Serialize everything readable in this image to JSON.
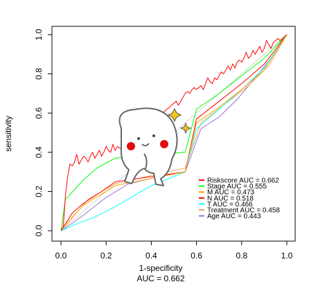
{
  "chart_data": {
    "type": "line",
    "xlabel": "1-specificity",
    "ylabel": "sensitivity",
    "footer": "AUC = 0.662",
    "xlim": [
      0,
      1
    ],
    "ylim": [
      0,
      1
    ],
    "x_ticks": [
      {
        "value": 0.0,
        "label": "0.0"
      },
      {
        "value": 0.2,
        "label": "0.2"
      },
      {
        "value": 0.4,
        "label": "0.4"
      },
      {
        "value": 0.6,
        "label": "0.6"
      },
      {
        "value": 0.8,
        "label": "0.8"
      },
      {
        "value": 1.0,
        "label": "1.0"
      }
    ],
    "y_ticks": [
      {
        "value": 0.0,
        "label": "0.0"
      },
      {
        "value": 0.2,
        "label": "0.2"
      },
      {
        "value": 0.4,
        "label": "0.4"
      },
      {
        "value": 0.6,
        "label": "0.6"
      },
      {
        "value": 0.8,
        "label": "0.8"
      },
      {
        "value": 1.0,
        "label": "1.0"
      }
    ],
    "diagonal_color": "#d3d3d3",
    "legend_position": "bottom-right",
    "series": [
      {
        "name": "Riskscore AUC =  0.662",
        "color": "#ff0000",
        "x": [
          0.0,
          0.01,
          0.02,
          0.03,
          0.04,
          0.05,
          0.06,
          0.07,
          0.08,
          0.09,
          0.1,
          0.11,
          0.12,
          0.13,
          0.14,
          0.15,
          0.16,
          0.17,
          0.18,
          0.19,
          0.2,
          0.21,
          0.22,
          0.23,
          0.24,
          0.25,
          0.26,
          0.27,
          0.28,
          0.29,
          0.3,
          0.31,
          0.32,
          0.33,
          0.34,
          0.35,
          0.36,
          0.37,
          0.38,
          0.39,
          0.4,
          0.41,
          0.42,
          0.43,
          0.44,
          0.45,
          0.46,
          0.47,
          0.48,
          0.49,
          0.5,
          0.51,
          0.52,
          0.53,
          0.54,
          0.55,
          0.56,
          0.57,
          0.58,
          0.59,
          0.6,
          0.61,
          0.62,
          0.63,
          0.64,
          0.65,
          0.66,
          0.67,
          0.68,
          0.69,
          0.7,
          0.71,
          0.72,
          0.73,
          0.74,
          0.75,
          0.76,
          0.77,
          0.78,
          0.79,
          0.8,
          0.81,
          0.82,
          0.83,
          0.84,
          0.85,
          0.86,
          0.87,
          0.88,
          0.89,
          0.9,
          0.91,
          0.92,
          0.93,
          0.94,
          0.95,
          0.96,
          0.97,
          0.98,
          0.99,
          1.0
        ],
        "y": [
          0.0,
          0.02,
          0.18,
          0.28,
          0.34,
          0.33,
          0.35,
          0.39,
          0.34,
          0.36,
          0.38,
          0.37,
          0.35,
          0.38,
          0.4,
          0.37,
          0.39,
          0.41,
          0.38,
          0.4,
          0.43,
          0.41,
          0.4,
          0.44,
          0.41,
          0.43,
          0.42,
          0.42,
          0.42,
          0.42,
          0.42,
          0.42,
          0.42,
          0.43,
          0.45,
          0.47,
          0.49,
          0.5,
          0.52,
          0.53,
          0.55,
          0.56,
          0.57,
          0.58,
          0.59,
          0.6,
          0.61,
          0.62,
          0.63,
          0.64,
          0.65,
          0.66,
          0.64,
          0.66,
          0.68,
          0.7,
          0.71,
          0.7,
          0.72,
          0.73,
          0.72,
          0.73,
          0.74,
          0.72,
          0.75,
          0.78,
          0.76,
          0.75,
          0.78,
          0.77,
          0.79,
          0.81,
          0.8,
          0.82,
          0.84,
          0.82,
          0.85,
          0.83,
          0.86,
          0.87,
          0.86,
          0.88,
          0.91,
          0.88,
          0.89,
          0.92,
          0.9,
          0.92,
          0.94,
          0.91,
          0.93,
          0.97,
          0.95,
          0.93,
          0.96,
          0.97,
          0.98,
          0.97,
          0.98,
          0.99,
          1.0
        ]
      },
      {
        "name": "Stage AUC =  0.555",
        "color": "#00ff00",
        "x": [
          0.0,
          0.02,
          0.06,
          0.1,
          0.16,
          0.24,
          0.55,
          0.6,
          0.7,
          0.8,
          0.9,
          1.0
        ],
        "y": [
          0.0,
          0.16,
          0.21,
          0.26,
          0.32,
          0.37,
          0.4,
          0.62,
          0.7,
          0.79,
          0.88,
          1.0
        ]
      },
      {
        "name": "M AUC =  0.473",
        "color": "#ffa500",
        "x": [
          0.0,
          0.05,
          0.1,
          0.24,
          0.55,
          0.6,
          0.7,
          0.8,
          0.9,
          1.0
        ],
        "y": [
          0.0,
          0.07,
          0.13,
          0.23,
          0.3,
          0.55,
          0.63,
          0.72,
          0.82,
          1.0
        ]
      },
      {
        "name": "N AUC =  0.518",
        "color": "#ff0000",
        "x": [
          0.0,
          0.05,
          0.1,
          0.18,
          0.24,
          0.55,
          0.6,
          0.7,
          0.8,
          0.9,
          1.0
        ],
        "y": [
          0.0,
          0.09,
          0.14,
          0.2,
          0.25,
          0.3,
          0.57,
          0.66,
          0.75,
          0.85,
          1.0
        ]
      },
      {
        "name": "T AUC =  0.466",
        "color": "#00ffff",
        "x": [
          0.0,
          0.08,
          0.15,
          0.22,
          0.4,
          0.55,
          0.6,
          0.7,
          0.8,
          0.9,
          1.0
        ],
        "y": [
          0.0,
          0.04,
          0.07,
          0.11,
          0.23,
          0.3,
          0.52,
          0.62,
          0.72,
          0.83,
          1.0
        ]
      },
      {
        "name": "Treatment AUC =  0.458",
        "color": "#f4a460",
        "x": [
          0.0,
          0.06,
          0.12,
          0.24,
          0.55,
          0.62,
          0.72,
          0.82,
          0.92,
          1.0
        ],
        "y": [
          0.0,
          0.08,
          0.16,
          0.24,
          0.32,
          0.55,
          0.64,
          0.73,
          0.84,
          1.0
        ]
      },
      {
        "name": "Age AUC =  0.443",
        "color": "#9370db",
        "x": [
          0.0,
          0.04,
          0.1,
          0.2,
          0.3,
          0.45,
          0.55,
          0.62,
          0.7,
          0.78,
          0.86,
          0.93,
          1.0
        ],
        "y": [
          0.0,
          0.03,
          0.08,
          0.17,
          0.24,
          0.28,
          0.3,
          0.52,
          0.58,
          0.67,
          0.78,
          0.88,
          1.0
        ]
      }
    ]
  }
}
